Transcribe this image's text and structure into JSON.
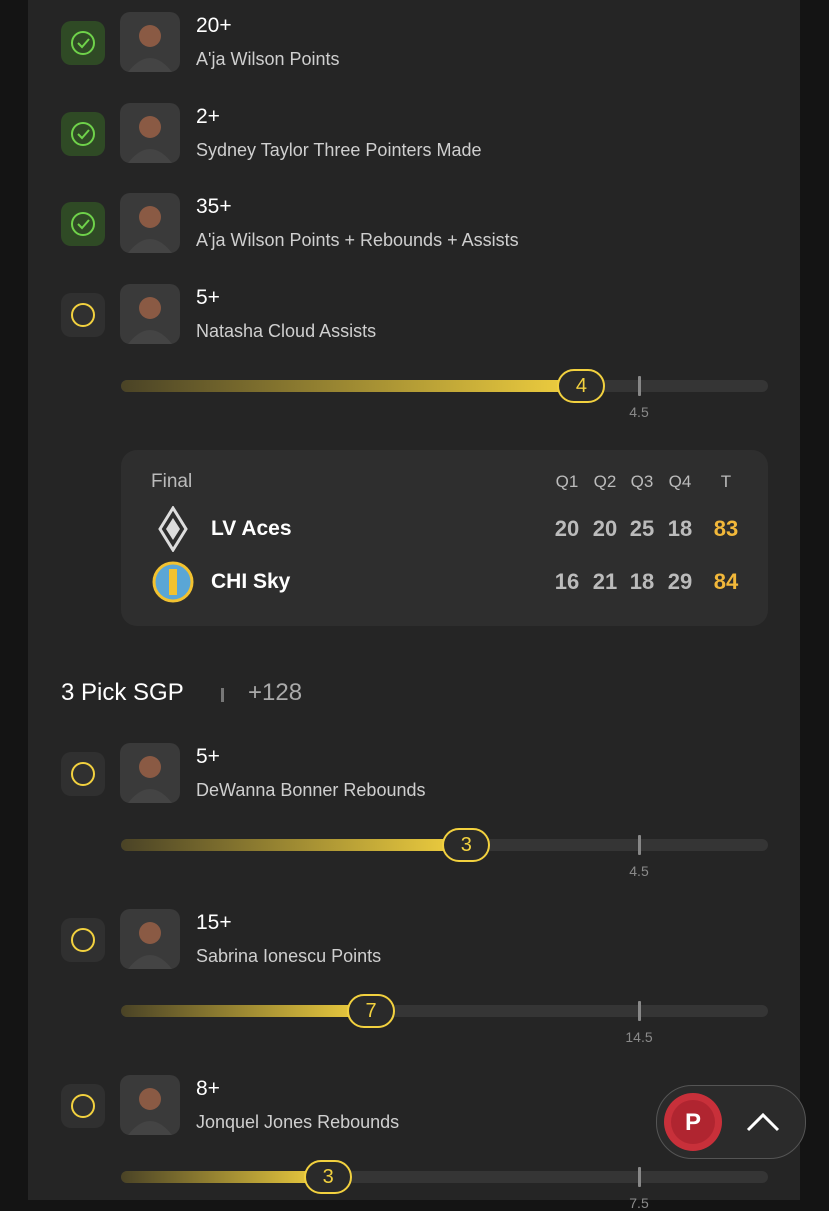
{
  "legs": [
    {
      "line": "20+",
      "label": "A'ja Wilson Points"
    },
    {
      "line": "2+",
      "label": "Sydney Taylor Three Pointers Made"
    },
    {
      "line": "35+",
      "label": "A'ja Wilson Points + Rebounds + Assists"
    },
    {
      "line": "5+",
      "label": "Natasha Cloud Assists",
      "value": 4,
      "target": 4.5
    }
  ],
  "scoreboard": {
    "status": "Final",
    "headers": [
      "Q1",
      "Q2",
      "Q3",
      "Q4",
      "T"
    ],
    "teams": [
      {
        "name": "LV Aces",
        "scores": [
          20,
          20,
          25,
          18,
          83
        ]
      },
      {
        "name": "CHI Sky",
        "scores": [
          16,
          21,
          18,
          29,
          84
        ]
      }
    ]
  },
  "parlay": {
    "title": "3 Pick SGP",
    "odds": "+128",
    "legs": [
      {
        "line": "5+",
        "label": "DeWanna Bonner Rebounds",
        "value": 3,
        "target": 4.5
      },
      {
        "line": "15+",
        "label": "Sabrina Ionescu Points",
        "value": 7,
        "target": 14.5
      },
      {
        "line": "8+",
        "label": "Jonquel Jones Rebounds",
        "value": 3,
        "target": 7.5
      }
    ]
  }
}
